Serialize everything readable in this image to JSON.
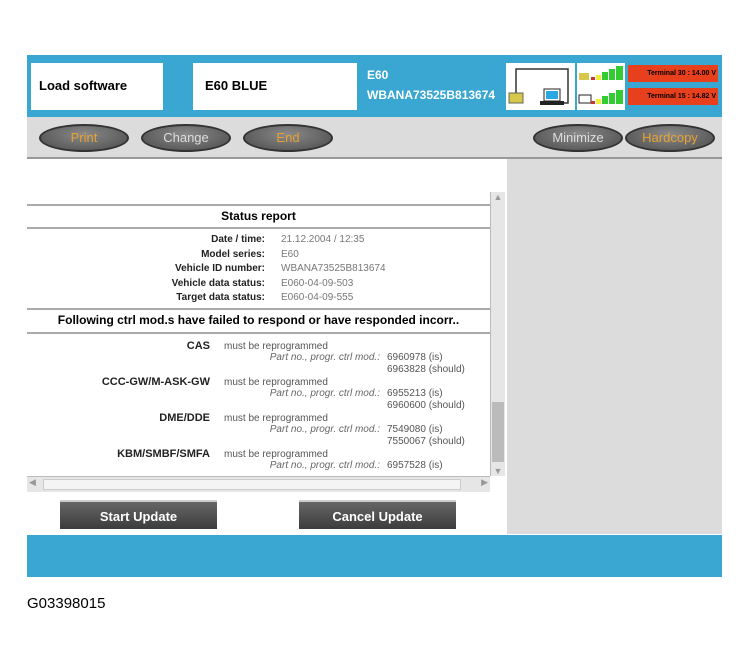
{
  "header": {
    "function": "Load software",
    "vehicle": "E60 BLUE",
    "model": "E60",
    "vin": "WBANA73525B813674",
    "terminal30": "Terminal 30 : 14.00 V",
    "terminal15": "Terminal 15 : 14.82 V"
  },
  "toolbar": {
    "print": "Print",
    "change": "Change",
    "end": "End",
    "minimize": "Minimize",
    "hardcopy": "Hardcopy"
  },
  "report": {
    "title": "Status report",
    "fields": [
      {
        "label": "Date / time:",
        "value": "21.12.2004 / 12:35"
      },
      {
        "label": "Model series:",
        "value": "E60"
      },
      {
        "label": "Vehicle ID number:",
        "value": "WBANA73525B813674"
      },
      {
        "label": "Vehicle data status:",
        "value": "E060-04-09-503"
      },
      {
        "label": "Target data status:",
        "value": "E060-04-09-555"
      }
    ],
    "failed_heading": "Following ctrl mod.s have failed to respond or have responded incorr..",
    "modules": [
      {
        "name": "CAS",
        "status": "must be reprogrammed",
        "part_label": "Part no., progr. ctrl mod.:",
        "is": "6960978 (is)",
        "should": "6963828 (should)"
      },
      {
        "name": "CCC-GW/M-ASK-GW",
        "status": "must be reprogrammed",
        "part_label": "Part no., progr. ctrl mod.:",
        "is": "6955213 (is)",
        "should": "6960600 (should)"
      },
      {
        "name": "DME/DDE",
        "status": "must be reprogrammed",
        "part_label": "Part no., progr. ctrl mod.:",
        "is": "7549080 (is)",
        "should": "7550067 (should)"
      },
      {
        "name": "KBM/SMBF/SMFA",
        "status": "must be reprogrammed",
        "part_label": "Part no., progr. ctrl mod.:",
        "is": "6957528 (is)",
        "should": ""
      }
    ]
  },
  "buttons": {
    "start": "Start Update",
    "cancel": "Cancel Update"
  },
  "caption": "G03398015",
  "colors": {
    "header_blue": "#3aa6d2",
    "terminal_red": "#e8401c",
    "button_orange": "#e8a232"
  }
}
